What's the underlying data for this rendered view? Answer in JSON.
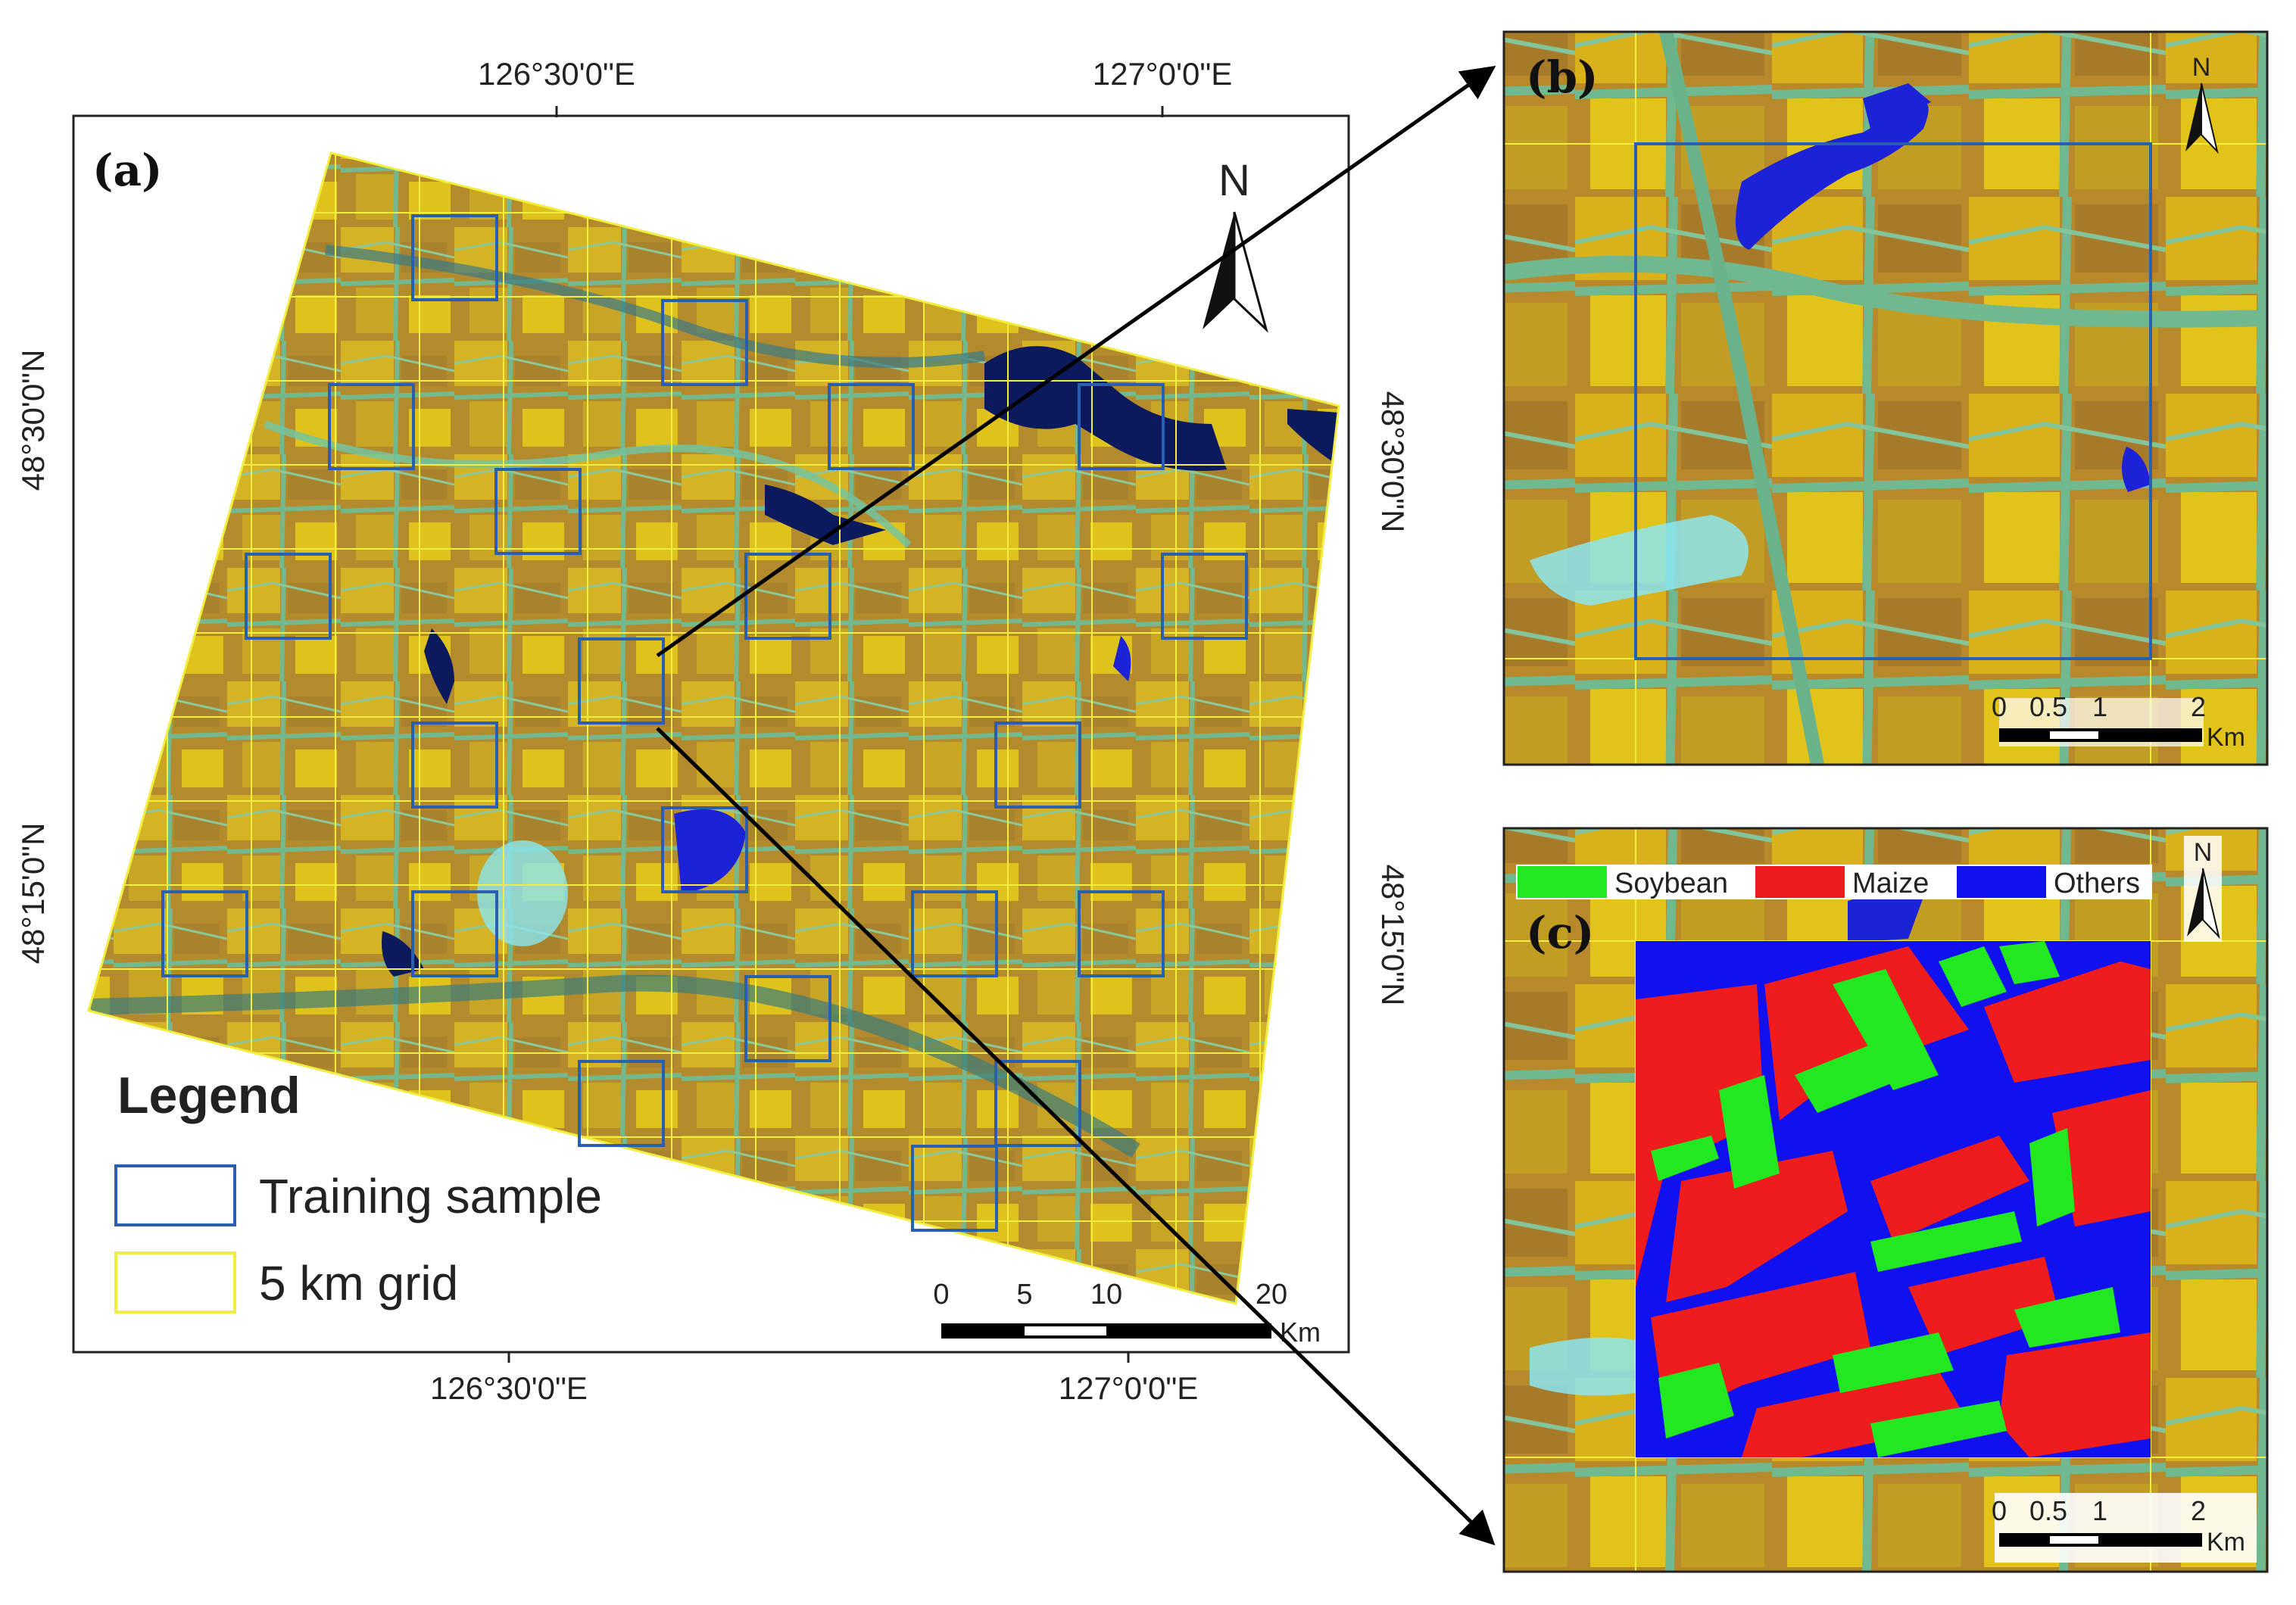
{
  "panels": {
    "a": {
      "label": "(a)",
      "top_ticks": [
        "126°30'0\"E",
        "127°0'0\"E"
      ],
      "bottom_ticks": [
        "126°30'0\"E",
        "127°0'0\"E"
      ],
      "left_ticks": [
        "48°30'0\"N",
        "48°15'0\"N"
      ],
      "right_ticks": [
        "48°30'0\"N",
        "48°15'0\"N"
      ],
      "north": "N",
      "scale": {
        "ticks": [
          "0",
          "5",
          "10",
          "20"
        ],
        "unit": "Km"
      },
      "legend": {
        "title": "Legend",
        "items": [
          {
            "label": "Training sample",
            "color": "#2a5fb0"
          },
          {
            "label": "5 km grid",
            "color": "#f2ee40"
          }
        ]
      }
    },
    "b": {
      "label": "(b)",
      "north": "N",
      "scale": {
        "ticks": [
          "0",
          "0.5",
          "1",
          "2"
        ],
        "unit": "Km"
      }
    },
    "c": {
      "label": "(c)",
      "north": "N",
      "scale": {
        "ticks": [
          "0",
          "0.5",
          "1",
          "2"
        ],
        "unit": "Km"
      },
      "classes": [
        {
          "label": "Soybean",
          "color": "#22e822"
        },
        {
          "label": "Maize",
          "color": "#ee1c1c"
        },
        {
          "label": "Others",
          "color": "#1010f0"
        }
      ]
    }
  },
  "colors": {
    "field_yellow": "#d7b21d",
    "field_brown": "#b98a2a",
    "vegetation_green": "#6fba8c",
    "water_blue": "#1c22d6",
    "urban_cyan": "#8be6f0",
    "grid_yellow": "#f2ee40",
    "sample_blue": "#2a5fb0"
  }
}
